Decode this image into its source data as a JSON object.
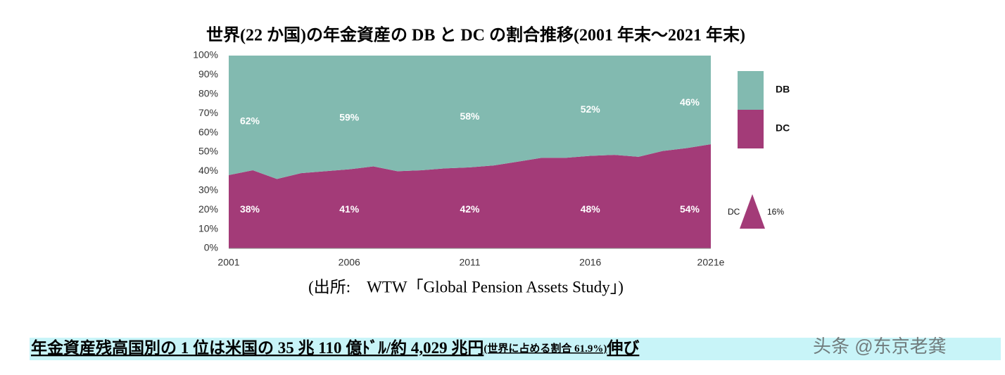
{
  "chart_data": {
    "type": "stacked-area",
    "title": "世界(22 か国)の年金資産の DB と DC の割合推移(2001 年末～2021 年末)",
    "categories": [
      "2001",
      null,
      null,
      null,
      null,
      "2006",
      null,
      null,
      null,
      null,
      "2011",
      null,
      null,
      null,
      null,
      "2016",
      null,
      null,
      null,
      null,
      "2021e"
    ],
    "series": [
      {
        "name": "DC",
        "color": "#a33b78",
        "values": [
          38,
          40.5,
          36,
          39,
          40,
          41,
          42.5,
          40,
          40.5,
          41.5,
          42,
          43,
          45,
          47,
          47,
          48,
          48.5,
          47.5,
          50.5,
          52,
          54
        ],
        "value_labels": [
          "38%",
          null,
          null,
          null,
          null,
          "41%",
          null,
          null,
          null,
          null,
          "42%",
          null,
          null,
          null,
          null,
          "48%",
          null,
          null,
          null,
          null,
          "54%"
        ]
      },
      {
        "name": "DB",
        "color": "#82bab0",
        "values": [
          62,
          59.5,
          64,
          61,
          60,
          59,
          57.5,
          60,
          59.5,
          58.5,
          58,
          57,
          55,
          53,
          53,
          52,
          51.5,
          52.5,
          49.5,
          48,
          46
        ],
        "value_labels": [
          "62%",
          null,
          null,
          null,
          null,
          "59%",
          null,
          null,
          null,
          null,
          "58%",
          null,
          null,
          null,
          null,
          "52%",
          null,
          null,
          null,
          null,
          "46%"
        ]
      }
    ],
    "ylim": [
      0,
      100
    ],
    "yticks": [
      {
        "value": 0,
        "label": "0%"
      },
      {
        "value": 10,
        "label": "10%"
      },
      {
        "value": 20,
        "label": "20%"
      },
      {
        "value": 30,
        "label": "30%"
      },
      {
        "value": 40,
        "label": "40%"
      },
      {
        "value": 50,
        "label": "50%"
      },
      {
        "value": 60,
        "label": "60%"
      },
      {
        "value": 70,
        "label": "70%"
      },
      {
        "value": 80,
        "label": "80%"
      },
      {
        "value": 90,
        "label": "90%"
      },
      {
        "value": 100,
        "label": "100%"
      }
    ],
    "annotation": {
      "series": "DC",
      "text": "16%"
    },
    "source": "(出所:　WTW「Global Pension Assets Study」)",
    "footer": {
      "main": "年金資産残高国別の 1 位は米国の 35 兆 110 億ﾄﾞﾙ/約 4,029 兆円",
      "note": "(世界に占める割合 61.9%)",
      "tail": "伸び"
    },
    "watermark": "头条 @东京老龚"
  }
}
